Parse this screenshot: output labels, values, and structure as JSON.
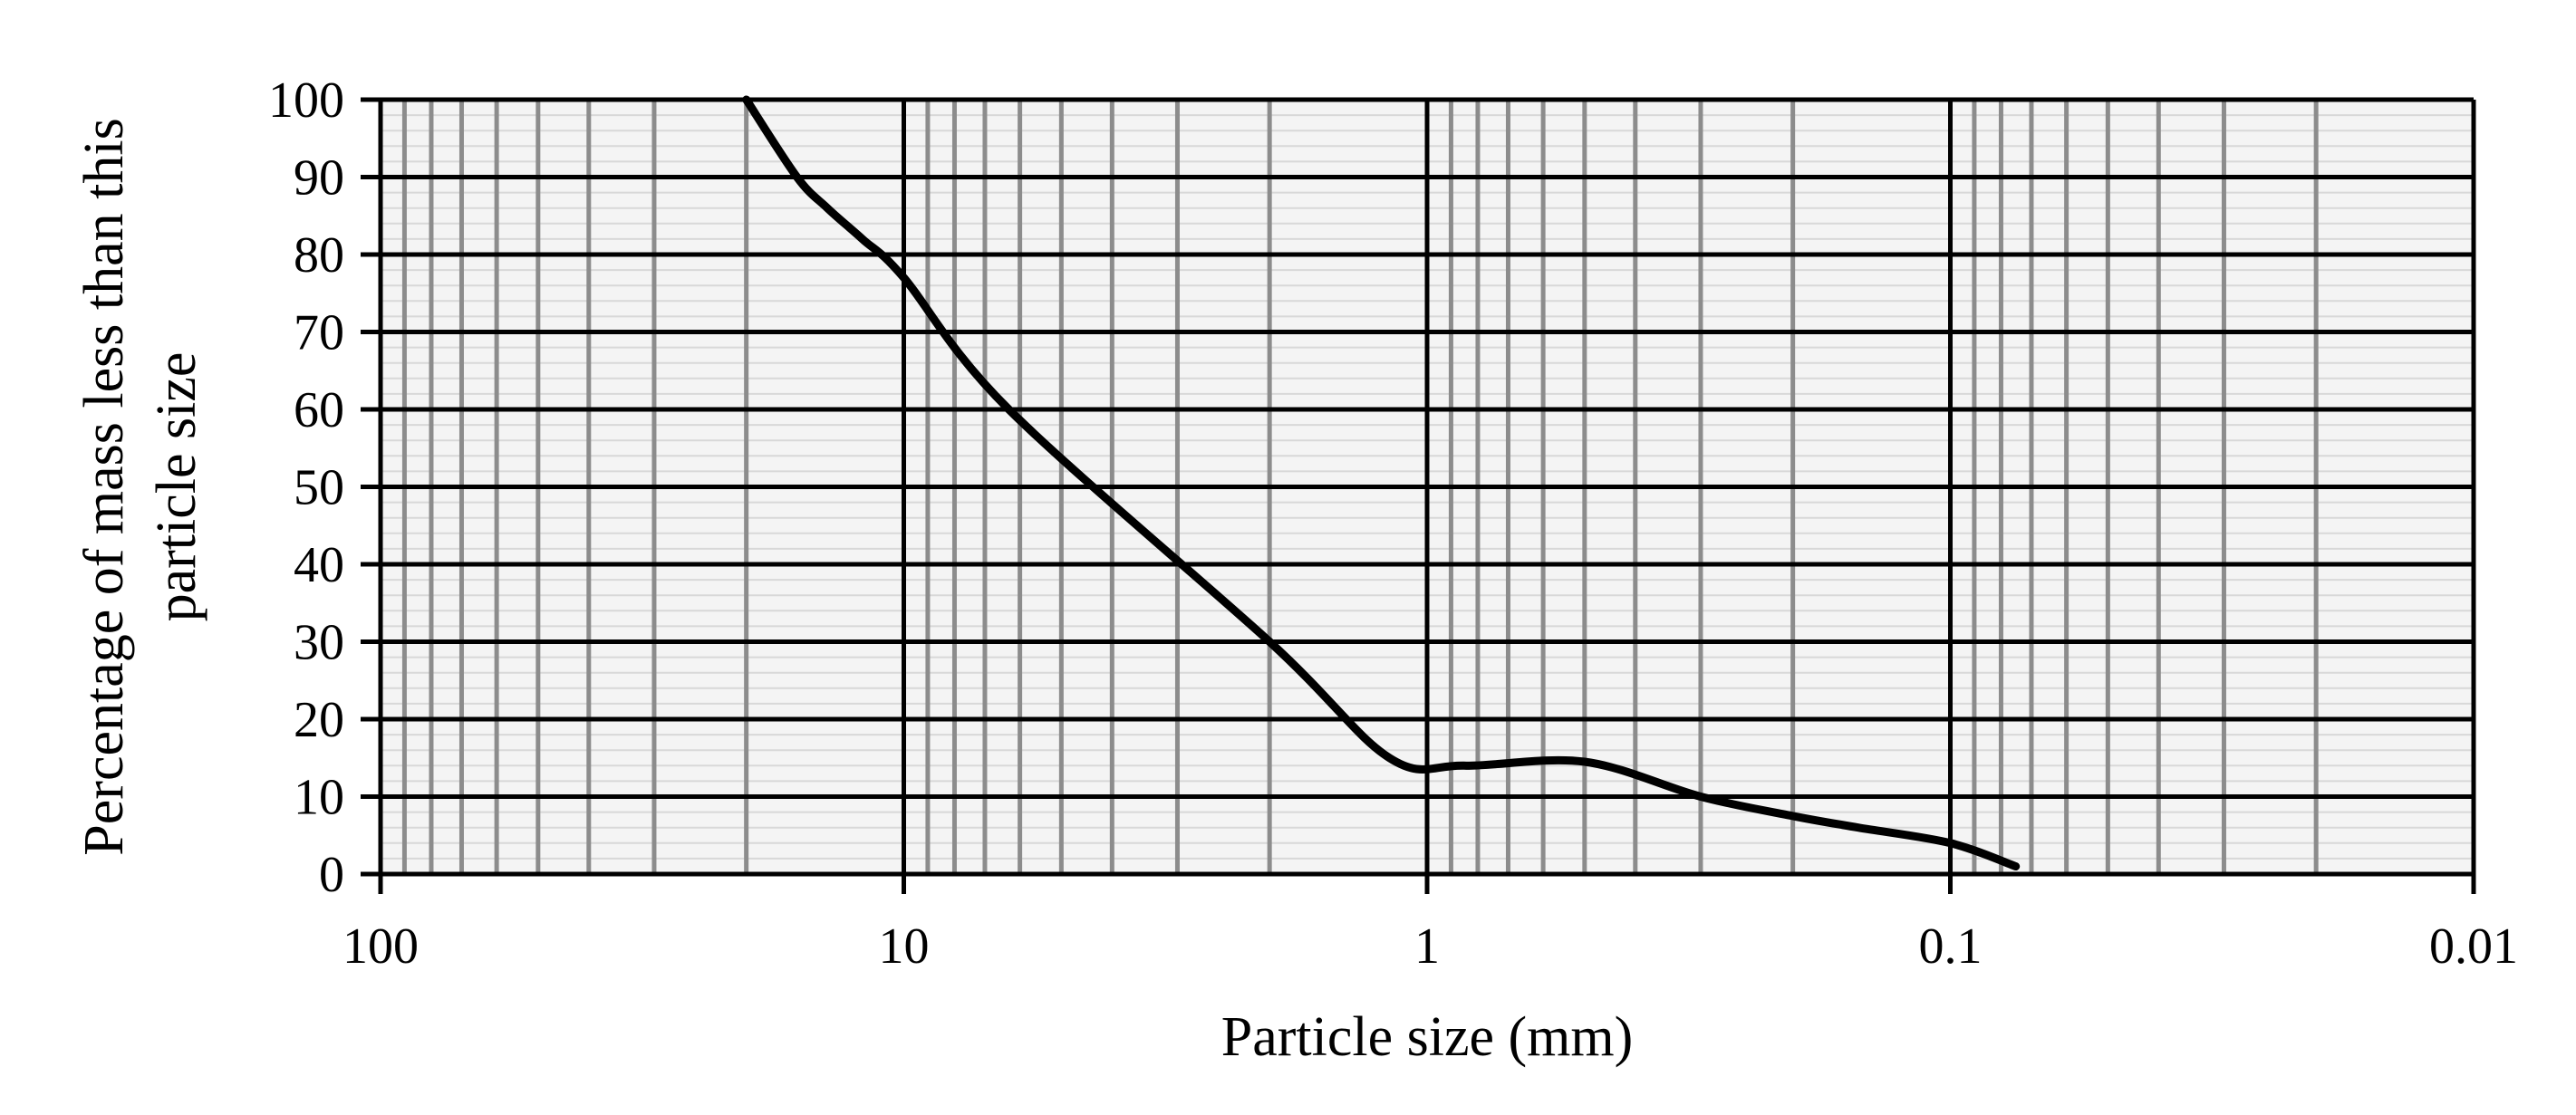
{
  "chart_data": {
    "type": "line",
    "title": "",
    "xlabel": "Particle size (mm)",
    "ylabel": [
      "Percentage of mass less than this",
      "particle size"
    ],
    "x_scale": "log",
    "x_reversed": true,
    "xlim": [
      100,
      0.01
    ],
    "ylim": [
      0,
      100
    ],
    "x_ticks": [
      {
        "value": 100,
        "label": "100"
      },
      {
        "value": 10,
        "label": "10"
      },
      {
        "value": 1,
        "label": "1"
      },
      {
        "value": 0.1,
        "label": "0.1"
      },
      {
        "value": 0.01,
        "label": "0.01"
      }
    ],
    "y_ticks": [
      {
        "value": 0,
        "label": "0"
      },
      {
        "value": 10,
        "label": "10"
      },
      {
        "value": 20,
        "label": "20"
      },
      {
        "value": 30,
        "label": "30"
      },
      {
        "value": 40,
        "label": "40"
      },
      {
        "value": 50,
        "label": "50"
      },
      {
        "value": 60,
        "label": "60"
      },
      {
        "value": 70,
        "label": "70"
      },
      {
        "value": 80,
        "label": "80"
      },
      {
        "value": 90,
        "label": "90"
      },
      {
        "value": 100,
        "label": "100"
      }
    ],
    "grid": true,
    "series": [
      {
        "color": "#000000",
        "x": [
          20,
          16,
          14,
          12,
          10,
          6.3,
          2,
          1.18,
          0.85,
          0.5,
          0.3,
          0.2,
          0.15,
          0.1,
          0.075
        ],
        "y": [
          100,
          90,
          86,
          82,
          77,
          60,
          30,
          15,
          14,
          14.5,
          10,
          7.5,
          6,
          4,
          1
        ]
      }
    ]
  }
}
